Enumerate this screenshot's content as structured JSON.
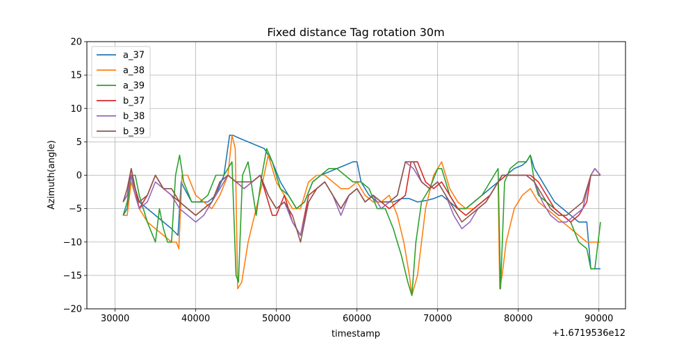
{
  "chart_data": {
    "type": "line",
    "title": "Fixed distance Tag rotation 30m",
    "xlabel": "timestamp",
    "ylabel": "Azimuth(angle)",
    "x_offset_label": "+1.6719536e12",
    "xlim": [
      26500,
      93300
    ],
    "ylim": [
      -20,
      20
    ],
    "x_ticks": [
      30000,
      40000,
      50000,
      60000,
      70000,
      80000,
      90000
    ],
    "x_tick_labels": [
      "30000",
      "40000",
      "50000",
      "60000",
      "70000",
      "80000",
      "90000"
    ],
    "y_ticks": [
      -20,
      -15,
      -10,
      -5,
      0,
      5,
      10,
      15,
      20
    ],
    "y_tick_labels": [
      "−20",
      "−15",
      "−10",
      "−5",
      "0",
      "5",
      "10",
      "15",
      "20"
    ],
    "grid": true,
    "legend_position": "top-left",
    "series": [
      {
        "name": "a_37",
        "color": "#1f77b4",
        "x": [
          31000,
          31500,
          32000,
          32500,
          33000,
          34000,
          35000,
          36000,
          37000,
          37800,
          38200,
          38600,
          39500,
          40500,
          41500,
          42500,
          43500,
          44200,
          44600,
          45500,
          46500,
          47500,
          48500,
          49000,
          49500,
          50500,
          51500,
          52500,
          53500,
          54500,
          55500,
          56500,
          57500,
          58500,
          59500,
          60000,
          60500,
          61500,
          62500,
          63500,
          64500,
          65500,
          66500,
          67500,
          68500,
          69500,
          70500,
          71500,
          72500,
          73500,
          74500,
          75500,
          76500,
          77500,
          78000,
          78500,
          79500,
          80500,
          81000,
          81500,
          82000,
          82500,
          83500,
          84500,
          85500,
          86500,
          87500,
          88500,
          89000,
          89500,
          90200
        ],
        "y": [
          -6,
          -5,
          0,
          -2,
          -4,
          -5,
          -6,
          -7,
          -8,
          -9,
          -1,
          -2,
          -4,
          -4,
          -4,
          -3,
          0,
          6,
          6,
          5.5,
          5,
          4.5,
          4,
          3,
          2,
          -1,
          -3,
          -5,
          -4,
          -1,
          0,
          0.5,
          1,
          1.5,
          2,
          2,
          -1,
          -3,
          -4,
          -4,
          -4,
          -3.5,
          -3.5,
          -4,
          -3.8,
          -3.5,
          -3,
          -4,
          -5,
          -5,
          -4,
          -3,
          -2,
          -1,
          0,
          0,
          1,
          1.5,
          2,
          3,
          1,
          0,
          -2,
          -4,
          -5,
          -6,
          -7,
          -7,
          -14,
          -14,
          -14
        ]
      },
      {
        "name": "a_38",
        "color": "#ff7f0e",
        "x": [
          31000,
          31500,
          32000,
          32500,
          33000,
          34000,
          35000,
          36000,
          37000,
          37600,
          37900,
          38300,
          39000,
          40000,
          41000,
          42000,
          43000,
          44000,
          44500,
          44900,
          45200,
          45700,
          46500,
          47500,
          48300,
          49000,
          50000,
          51000,
          52000,
          53000,
          54000,
          55000,
          56000,
          57000,
          58000,
          59000,
          60000,
          61000,
          62000,
          63000,
          64000,
          65000,
          65800,
          66500,
          66800,
          67500,
          68500,
          69500,
          70500,
          71500,
          72500,
          73500,
          74500,
          75500,
          76500,
          77500,
          77700,
          78000,
          78500,
          79500,
          80500,
          81500,
          82500,
          83500,
          84500,
          85500,
          86500,
          87500,
          88500,
          89000,
          89500,
          90200
        ],
        "y": [
          -6,
          -6,
          -1,
          -3,
          -5,
          -7,
          -8,
          -9,
          -10,
          -10,
          -11,
          0,
          0,
          -3,
          -4,
          -5,
          -3,
          0,
          6,
          4,
          -17,
          -16,
          -10,
          -5,
          -1,
          3,
          -1,
          -3,
          -5,
          -5,
          -1,
          0,
          0,
          -1,
          -2,
          -2,
          -1,
          -3,
          -4,
          -4,
          -3,
          -6,
          -10,
          -15,
          -18,
          -15,
          -5,
          0,
          2,
          -2,
          -4,
          -5,
          -5,
          -4,
          -3,
          -1,
          -17,
          -15,
          -10,
          -5,
          -3,
          -2,
          -4,
          -5,
          -6,
          -7,
          -8,
          -9,
          -10,
          -10,
          -10,
          -10
        ]
      },
      {
        "name": "a_39",
        "color": "#2ca02c",
        "x": [
          31000,
          31500,
          32000,
          32500,
          33000,
          33500,
          34000,
          35000,
          35500,
          36000,
          36500,
          37000,
          37500,
          38000,
          38500,
          39500,
          40500,
          41500,
          42500,
          43500,
          44000,
          44500,
          45000,
          45300,
          45800,
          46500,
          47500,
          48200,
          48800,
          49500,
          50500,
          51500,
          52500,
          53500,
          54500,
          55500,
          56500,
          57500,
          58500,
          59500,
          60500,
          61500,
          62500,
          63500,
          64500,
          65500,
          66300,
          66800,
          67300,
          68000,
          69000,
          70000,
          70500,
          71500,
          72500,
          73500,
          74500,
          75500,
          76500,
          77500,
          77800,
          78300,
          79000,
          80000,
          81000,
          81500,
          82000,
          82500,
          83500,
          84500,
          85500,
          86500,
          87500,
          88500,
          89000,
          89500,
          90200
        ],
        "y": [
          -6,
          -4,
          0,
          0,
          -3,
          -5,
          -7,
          -10,
          -5,
          -8,
          -10,
          -10,
          0,
          3,
          -1,
          -4,
          -4,
          -3,
          0,
          0,
          1,
          2,
          -15,
          -16,
          0,
          2,
          -6,
          0,
          4,
          2,
          -2,
          -3,
          -5,
          -4,
          -1,
          0,
          1,
          1,
          0,
          -1,
          -1,
          -2,
          -5,
          -5,
          -8,
          -12,
          -16,
          -18,
          -10,
          -4,
          -2,
          1,
          1,
          -3,
          -5,
          -5,
          -4,
          -3,
          -1,
          1,
          -17,
          -1,
          1,
          2,
          2,
          3,
          -1,
          -3,
          -4,
          -5,
          -6,
          -7,
          -10,
          -11,
          -14,
          -14,
          -7
        ]
      },
      {
        "name": "b_37",
        "color": "#d62728",
        "x": [
          31000,
          31500,
          32000,
          32500,
          33000,
          34000,
          35000,
          36000,
          37000,
          38000,
          39000,
          40000,
          41000,
          42000,
          43000,
          44000,
          45000,
          46000,
          47000,
          48000,
          49000,
          49500,
          50000,
          51000,
          52000,
          53000,
          54000,
          55000,
          56000,
          57000,
          58000,
          59000,
          60000,
          61000,
          62000,
          63000,
          64000,
          65000,
          66000,
          66700,
          67500,
          68500,
          69500,
          70500,
          71500,
          72500,
          73500,
          74500,
          75500,
          76500,
          77500,
          78500,
          79500,
          80500,
          81500,
          82500,
          83500,
          84500,
          85500,
          86500,
          87500,
          88500,
          89000,
          89500,
          90200
        ],
        "y": [
          -4,
          -3,
          1,
          -2,
          -5,
          -3,
          0,
          -2,
          -3,
          -4,
          -5,
          -6,
          -5,
          -4,
          -1,
          0,
          -1,
          -2,
          -1,
          0,
          -4,
          -6,
          -6,
          -3,
          -7,
          -9,
          -3,
          -2,
          -1,
          -3,
          -5,
          -3,
          -2,
          -4,
          -3,
          -4,
          -5,
          -4,
          -3,
          2,
          2,
          -1,
          -2,
          -1,
          -3,
          -5,
          -6,
          -5,
          -4,
          -3,
          -1,
          0,
          0,
          0,
          0,
          -1,
          -3,
          -5,
          -6,
          -7,
          -6,
          -4,
          0,
          1,
          0
        ]
      },
      {
        "name": "b_38",
        "color": "#9467bd",
        "x": [
          31000,
          31500,
          32000,
          32500,
          33000,
          34000,
          35000,
          36000,
          37000,
          38000,
          39000,
          40000,
          41000,
          42000,
          43000,
          44000,
          45000,
          46000,
          47000,
          48000,
          49000,
          50000,
          51000,
          52000,
          53000,
          54000,
          55000,
          56000,
          57000,
          58000,
          59000,
          60000,
          61000,
          62000,
          63000,
          64000,
          65000,
          66000,
          67000,
          68000,
          69000,
          70000,
          71000,
          72000,
          73000,
          74000,
          75000,
          76000,
          77000,
          78000,
          79000,
          80000,
          81000,
          82000,
          83000,
          84000,
          85000,
          86000,
          87000,
          88000,
          89000,
          89500,
          90200
        ],
        "y": [
          -4,
          -3,
          0,
          -3,
          -5,
          -4,
          -1,
          -2,
          -3,
          -5,
          -6,
          -7,
          -6,
          -4,
          -2,
          0,
          -1,
          -2,
          -1,
          0,
          -3,
          -5,
          -4,
          -7,
          -9,
          -4,
          -2,
          -1,
          -3,
          -6,
          -3,
          -2,
          -4,
          -3,
          -5,
          -4,
          -3,
          2,
          1,
          -1,
          -2,
          -1,
          -3,
          -6,
          -8,
          -7,
          -5,
          -4,
          -2,
          0,
          0,
          0,
          0,
          -1,
          -4,
          -6,
          -7,
          -7,
          -6,
          -5,
          0,
          1,
          0
        ]
      },
      {
        "name": "b_39",
        "color": "#8c564b",
        "x": [
          31000,
          31500,
          32000,
          32500,
          33000,
          34000,
          35000,
          36000,
          37000,
          38000,
          39000,
          40000,
          41000,
          42000,
          43000,
          44000,
          45000,
          46000,
          47000,
          48000,
          49000,
          50000,
          51000,
          52000,
          53000,
          54000,
          55000,
          56000,
          57000,
          58000,
          59000,
          60000,
          61000,
          62000,
          63000,
          64000,
          65000,
          66000,
          67000,
          68000,
          69000,
          70000,
          71000,
          72000,
          73000,
          74000,
          75000,
          76000,
          77000,
          78000,
          79000,
          80000,
          81000,
          82000,
          83000,
          84000,
          85000,
          86000,
          87000,
          88000,
          89000,
          89500,
          90200
        ],
        "y": [
          -4,
          -2,
          1,
          -2,
          -4,
          -3,
          0,
          -2,
          -2,
          -4,
          -5,
          -6,
          -5,
          -4,
          -1,
          0,
          -1,
          -1,
          -1,
          0,
          -3,
          -5,
          -4,
          -6,
          -10,
          -4,
          -2,
          -1,
          -3,
          -5,
          -3,
          -2,
          -4,
          -3,
          -4,
          -4,
          -3,
          2,
          2,
          -1,
          -2,
          -1,
          -3,
          -5,
          -7,
          -6,
          -5,
          -4,
          -2,
          0,
          0,
          0,
          0,
          -1,
          -3,
          -5,
          -6,
          -6,
          -5,
          -4,
          0,
          0,
          0
        ]
      }
    ]
  }
}
